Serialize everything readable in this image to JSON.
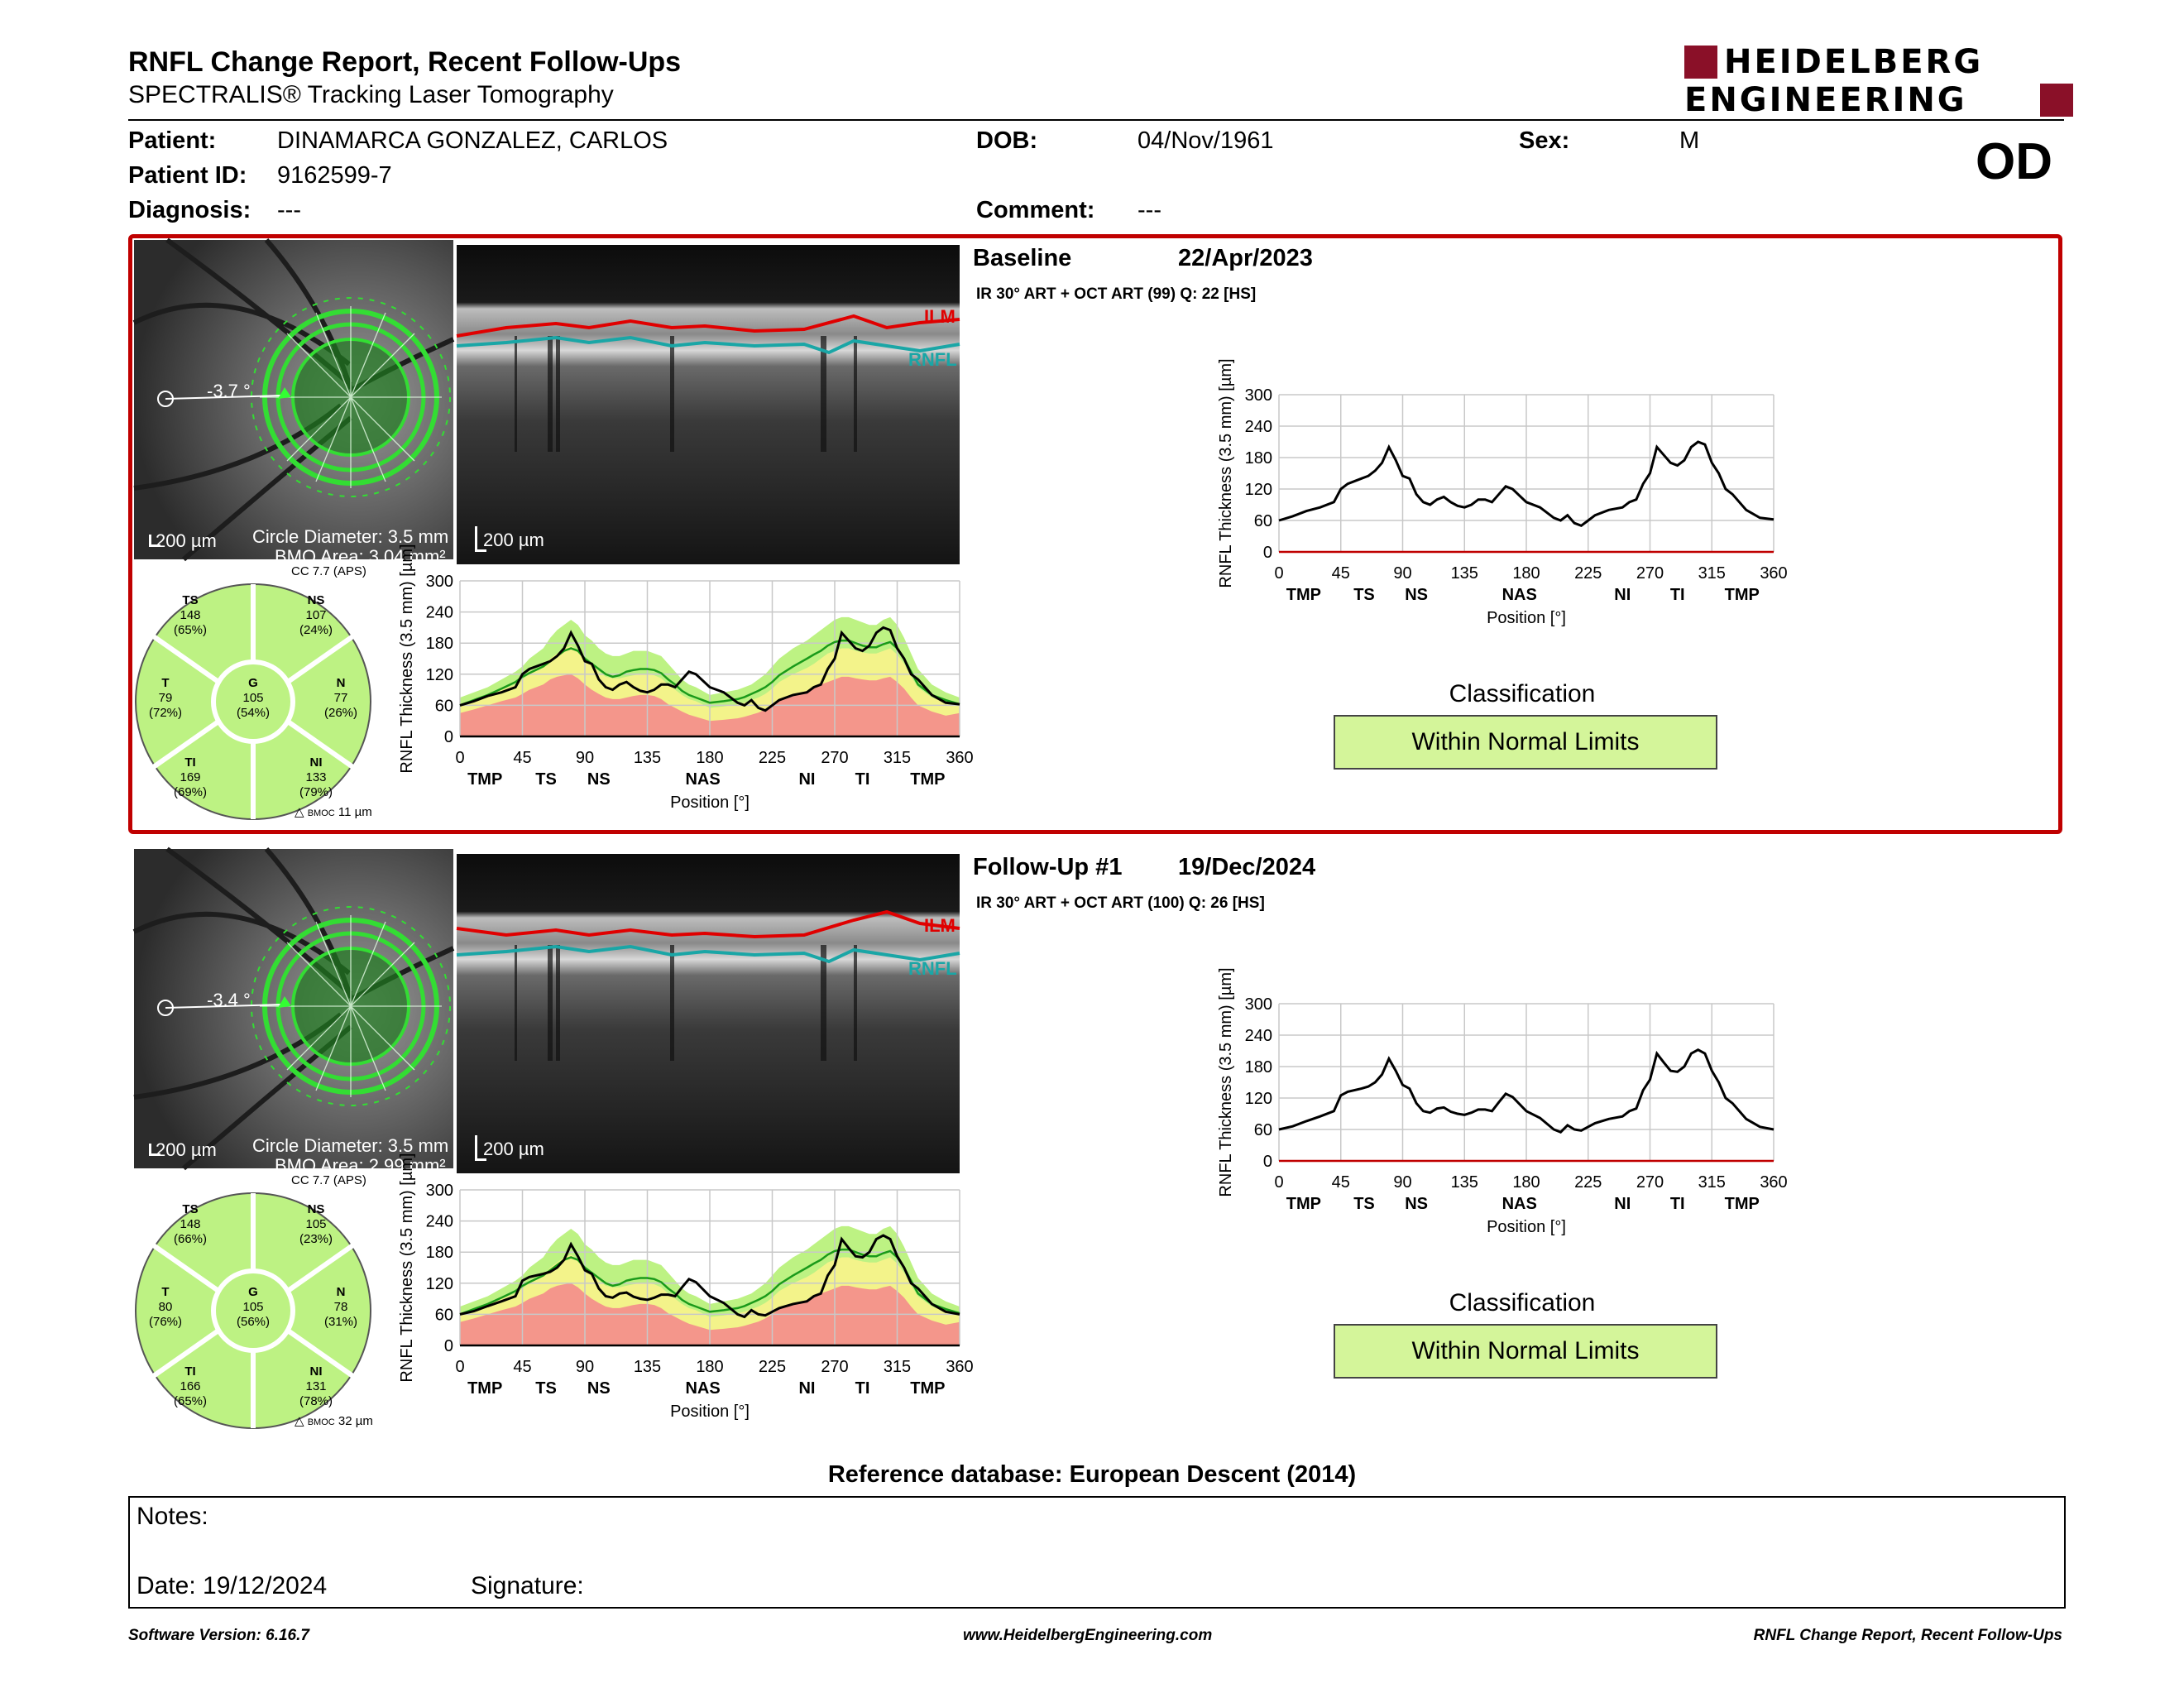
{
  "header": {
    "title": "RNFL Change Report, Recent Follow-Ups",
    "subtitle": "SPECTRALIS® Tracking Laser Tomography",
    "logo_line1": "HEIDELBERG",
    "logo_line2": "ENGINEERING",
    "eye": "OD"
  },
  "patient": {
    "patient_label": "Patient:",
    "patient_value": "DINAMARCA GONZALEZ, CARLOS",
    "id_label": "Patient ID:",
    "id_value": "9162599-7",
    "diagnosis_label": "Diagnosis:",
    "diagnosis_value": "---",
    "dob_label": "DOB:",
    "dob_value": "04/Nov/1961",
    "comment_label": "Comment:",
    "comment_value": "---",
    "sex_label": "Sex:",
    "sex_value": "M"
  },
  "exams": [
    {
      "title": "Baseline",
      "date": "22/Apr/2023",
      "scan_info": "IR 30° ART + OCT ART (99) Q: 22 [HS]",
      "angle": "-3.7 °",
      "scale": "200 µm",
      "oct_scale": "200 µm",
      "circle_diameter": "Circle Diameter: 3.5 mm",
      "bmo_area": "BMO Area: 3.04 mm²",
      "cc": "CC 7.7 (APS)",
      "bmoc_label": "BMOC",
      "bmoc_value": "11 µm",
      "ilm": "ILM",
      "rnfl": "RNFL",
      "sectors": {
        "TS": {
          "label": "TS",
          "value": "148",
          "pct": "(65%)"
        },
        "NS": {
          "label": "NS",
          "value": "107",
          "pct": "(24%)"
        },
        "T": {
          "label": "T",
          "value": "79",
          "pct": "(72%)"
        },
        "G": {
          "label": "G",
          "value": "105",
          "pct": "(54%)"
        },
        "N": {
          "label": "N",
          "value": "77",
          "pct": "(26%)"
        },
        "TI": {
          "label": "TI",
          "value": "169",
          "pct": "(69%)"
        },
        "NI": {
          "label": "NI",
          "value": "133",
          "pct": "(79%)"
        }
      },
      "classification_label": "Classification",
      "classification": "Within Normal Limits"
    },
    {
      "title": "Follow-Up #1",
      "date": "19/Dec/2024",
      "scan_info": "IR 30° ART + OCT ART (100) Q: 26 [HS]",
      "angle": "-3.4 °",
      "scale": "200 µm",
      "oct_scale": "200 µm",
      "circle_diameter": "Circle Diameter: 3.5 mm",
      "bmo_area": "BMO Area: 2.99 mm²",
      "cc": "CC 7.7 (APS)",
      "bmoc_label": "BMOC",
      "bmoc_value": "32 µm",
      "ilm": "ILM",
      "rnfl": "RNFL",
      "sectors": {
        "TS": {
          "label": "TS",
          "value": "148",
          "pct": "(66%)"
        },
        "NS": {
          "label": "NS",
          "value": "105",
          "pct": "(23%)"
        },
        "T": {
          "label": "T",
          "value": "80",
          "pct": "(76%)"
        },
        "G": {
          "label": "G",
          "value": "105",
          "pct": "(56%)"
        },
        "N": {
          "label": "N",
          "value": "78",
          "pct": "(31%)"
        },
        "TI": {
          "label": "TI",
          "value": "166",
          "pct": "(65%)"
        },
        "NI": {
          "label": "NI",
          "value": "131",
          "pct": "(78%)"
        }
      },
      "classification_label": "Classification",
      "classification": "Within Normal Limits"
    }
  ],
  "chart_data": [
    {
      "type": "line",
      "title": "",
      "xlabel": "Position [°]",
      "ylabel": "RNFL Thickness (3.5 mm) [µm]",
      "xlim": [
        0,
        360
      ],
      "ylim": [
        0,
        300
      ],
      "xticks": [
        0,
        45,
        90,
        135,
        180,
        225,
        270,
        315,
        360
      ],
      "yticks": [
        0,
        60,
        120,
        180,
        240,
        300
      ],
      "sector_labels": [
        "TMP",
        "TS",
        "NS",
        "NAS",
        "NI",
        "TI",
        "TMP"
      ],
      "sector_label_positions": [
        18,
        62,
        100,
        175,
        250,
        290,
        337
      ],
      "x": [
        0,
        10,
        20,
        30,
        40,
        45,
        50,
        60,
        65,
        70,
        75,
        80,
        85,
        90,
        95,
        100,
        105,
        110,
        115,
        120,
        125,
        130,
        135,
        140,
        145,
        150,
        155,
        160,
        165,
        170,
        180,
        190,
        200,
        205,
        210,
        215,
        220,
        225,
        230,
        240,
        250,
        255,
        260,
        265,
        270,
        275,
        280,
        285,
        290,
        295,
        300,
        305,
        310,
        315,
        320,
        325,
        330,
        340,
        350,
        360
      ],
      "series": [
        {
          "values": [
            60,
            68,
            78,
            85,
            95,
            120,
            130,
            140,
            145,
            155,
            170,
            200,
            175,
            145,
            140,
            110,
            95,
            90,
            100,
            105,
            95,
            88,
            85,
            90,
            100,
            100,
            95,
            110,
            125,
            120,
            95,
            85,
            65,
            60,
            70,
            55,
            50,
            60,
            70,
            80,
            85,
            95,
            100,
            130,
            150,
            200,
            185,
            170,
            165,
            175,
            200,
            210,
            205,
            170,
            150,
            120,
            110,
            80,
            65,
            62
          ]
        }
      ],
      "normal_bands": [
        {
          "color": "#bdf283",
          "values": [
            75,
            85,
            95,
            110,
            125,
            135,
            150,
            170,
            190,
            205,
            215,
            225,
            215,
            195,
            185,
            170,
            160,
            155,
            155,
            160,
            165,
            165,
            165,
            160,
            155,
            140,
            125,
            110,
            100,
            95,
            80,
            85,
            90,
            95,
            100,
            110,
            120,
            135,
            150,
            170,
            185,
            195,
            205,
            215,
            225,
            230,
            230,
            225,
            220,
            215,
            215,
            225,
            230,
            215,
            190,
            160,
            130,
            100,
            85,
            75
          ]
        },
        {
          "color": "#f3f38a",
          "values": [
            60,
            70,
            80,
            90,
            100,
            110,
            120,
            135,
            150,
            160,
            170,
            175,
            165,
            150,
            140,
            125,
            115,
            112,
            112,
            115,
            118,
            120,
            120,
            118,
            112,
            100,
            90,
            80,
            72,
            68,
            55,
            58,
            62,
            65,
            70,
            75,
            82,
            92,
            105,
            120,
            132,
            140,
            150,
            160,
            165,
            170,
            170,
            165,
            162,
            160,
            160,
            165,
            170,
            158,
            140,
            115,
            95,
            75,
            65,
            60
          ]
        },
        {
          "color": "#f4968b",
          "values": [
            45,
            52,
            60,
            68,
            75,
            82,
            90,
            100,
            110,
            115,
            118,
            120,
            112,
            100,
            90,
            82,
            75,
            72,
            72,
            75,
            78,
            80,
            80,
            78,
            72,
            62,
            55,
            48,
            42,
            38,
            30,
            32,
            35,
            38,
            42,
            46,
            52,
            60,
            70,
            80,
            88,
            95,
            100,
            105,
            110,
            115,
            115,
            112,
            110,
            108,
            108,
            112,
            115,
            105,
            92,
            75,
            60,
            48,
            40,
            45
          ]
        }
      ],
      "mean_line": [
        60,
        70,
        80,
        92,
        105,
        115,
        122,
        135,
        145,
        155,
        165,
        170,
        165,
        150,
        140,
        130,
        120,
        115,
        118,
        125,
        128,
        130,
        130,
        128,
        122,
        110,
        100,
        88,
        80,
        75,
        65,
        68,
        72,
        76,
        82,
        88,
        95,
        105,
        118,
        135,
        150,
        158,
        165,
        175,
        182,
        185,
        185,
        180,
        175,
        172,
        172,
        178,
        182,
        170,
        150,
        125,
        100,
        80,
        70,
        62
      ]
    },
    {
      "type": "line",
      "title": "",
      "xlabel": "Position [°]",
      "ylabel": "RNFL Thickness (3.5 mm) [µm]",
      "xlim": [
        0,
        360
      ],
      "ylim": [
        0,
        300
      ],
      "xticks": [
        0,
        45,
        90,
        135,
        180,
        225,
        270,
        315,
        360
      ],
      "yticks": [
        0,
        60,
        120,
        180,
        240,
        300
      ],
      "sector_labels": [
        "TMP",
        "TS",
        "NS",
        "NAS",
        "NI",
        "TI",
        "TMP"
      ],
      "sector_label_positions": [
        18,
        62,
        100,
        175,
        250,
        290,
        337
      ],
      "x": [
        0,
        10,
        20,
        30,
        40,
        45,
        50,
        60,
        65,
        70,
        75,
        80,
        85,
        90,
        95,
        100,
        105,
        110,
        115,
        120,
        125,
        130,
        135,
        140,
        145,
        150,
        155,
        160,
        165,
        170,
        180,
        190,
        200,
        205,
        210,
        215,
        220,
        225,
        230,
        240,
        250,
        255,
        260,
        265,
        270,
        275,
        280,
        285,
        290,
        295,
        300,
        305,
        310,
        315,
        320,
        325,
        330,
        340,
        350,
        360
      ],
      "series": [
        {
          "values": [
            60,
            66,
            76,
            85,
            95,
            125,
            132,
            138,
            142,
            150,
            165,
            195,
            172,
            145,
            138,
            110,
            95,
            92,
            100,
            102,
            94,
            90,
            88,
            92,
            98,
            98,
            95,
            112,
            128,
            122,
            95,
            82,
            60,
            55,
            68,
            60,
            58,
            65,
            72,
            80,
            85,
            95,
            100,
            135,
            155,
            205,
            188,
            172,
            170,
            180,
            205,
            212,
            205,
            172,
            150,
            120,
            110,
            80,
            65,
            60
          ]
        }
      ],
      "normal_bands": [
        {
          "color": "#bdf283",
          "values": [
            75,
            85,
            95,
            110,
            125,
            135,
            150,
            170,
            190,
            205,
            215,
            225,
            215,
            195,
            185,
            170,
            160,
            155,
            155,
            160,
            165,
            165,
            165,
            160,
            155,
            140,
            125,
            110,
            100,
            95,
            80,
            85,
            90,
            95,
            100,
            110,
            120,
            135,
            150,
            170,
            185,
            195,
            205,
            215,
            225,
            230,
            230,
            225,
            220,
            215,
            215,
            225,
            230,
            215,
            190,
            160,
            130,
            100,
            85,
            75
          ]
        },
        {
          "color": "#f3f38a",
          "values": [
            60,
            70,
            80,
            90,
            100,
            110,
            120,
            135,
            150,
            160,
            170,
            175,
            165,
            150,
            140,
            125,
            115,
            112,
            112,
            115,
            118,
            120,
            120,
            118,
            112,
            100,
            90,
            80,
            72,
            68,
            55,
            58,
            62,
            65,
            70,
            75,
            82,
            92,
            105,
            120,
            132,
            140,
            150,
            160,
            165,
            170,
            170,
            165,
            162,
            160,
            160,
            165,
            170,
            158,
            140,
            115,
            95,
            75,
            65,
            60
          ]
        },
        {
          "color": "#f4968b",
          "values": [
            45,
            52,
            60,
            68,
            75,
            82,
            90,
            100,
            110,
            115,
            118,
            120,
            112,
            100,
            90,
            82,
            75,
            72,
            72,
            75,
            78,
            80,
            80,
            78,
            72,
            62,
            55,
            48,
            42,
            38,
            30,
            32,
            35,
            38,
            42,
            46,
            52,
            60,
            70,
            80,
            88,
            95,
            100,
            105,
            110,
            115,
            115,
            112,
            110,
            108,
            108,
            112,
            115,
            105,
            92,
            75,
            60,
            48,
            40,
            45
          ]
        }
      ],
      "mean_line": [
        60,
        70,
        80,
        92,
        105,
        115,
        122,
        135,
        145,
        155,
        165,
        170,
        165,
        150,
        140,
        130,
        120,
        115,
        118,
        125,
        128,
        130,
        130,
        128,
        122,
        110,
        100,
        88,
        80,
        75,
        65,
        68,
        72,
        76,
        82,
        88,
        95,
        105,
        118,
        135,
        150,
        158,
        165,
        175,
        182,
        185,
        185,
        180,
        175,
        172,
        172,
        178,
        182,
        170,
        150,
        125,
        100,
        80,
        70,
        62
      ]
    }
  ],
  "change_charts": [
    {
      "xlabel": "Position [°]",
      "ylabel": "RNFL Thickness (3.5 mm) [µm]"
    },
    {
      "xlabel": "Position [°]",
      "ylabel": "RNFL Thickness (3.5 mm) [µm]"
    }
  ],
  "reference": "Reference database: European Descent (2014)",
  "notes": {
    "notes_label": "Notes:",
    "date_label": "Date: 19/12/2024",
    "signature_label": "Signature:"
  },
  "footer": {
    "software": "Software Version: 6.16.7",
    "website": "www.HeidelbergEngineering.com",
    "report": "RNFL Change Report, Recent Follow-Ups"
  },
  "colors": {
    "frame": "#c00000",
    "logo_accent": "#8a1028",
    "wnl_fill": "#d4f59a",
    "sector_fill": "#bdf283",
    "ilm_line": "#e00000",
    "rnfl_line": "#1aa6a6"
  }
}
